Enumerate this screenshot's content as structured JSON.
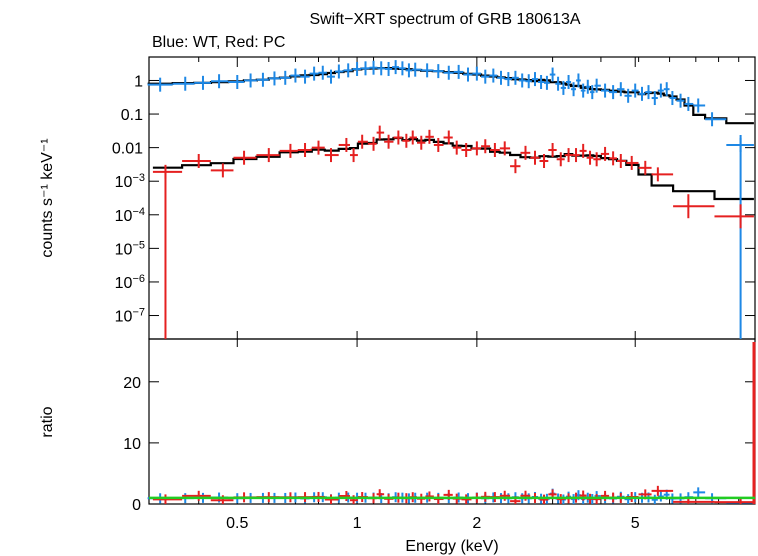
{
  "chart_data": {
    "type": "scatter",
    "title": "Swift−XRT spectrum of GRB 180613A",
    "subtitle": "Blue: WT, Red: PC",
    "xlabel": "Energy (keV)",
    "xscale": "log",
    "xlim": [
      0.3,
      10
    ],
    "x_ticks": [
      0.5,
      1,
      2,
      5
    ],
    "x_tick_labels": [
      "0.5",
      "1",
      "2",
      "5"
    ],
    "colors": {
      "wt": "#1e88e5",
      "pc": "#e52020",
      "model": "#000000",
      "ratio_line": "#22cc22"
    },
    "top_panel": {
      "ylabel": "counts s⁻¹ keV⁻¹",
      "yscale": "log",
      "ylim": [
        2e-08,
        5
      ],
      "y_ticks": [
        {
          "value": 1,
          "label": "1"
        },
        {
          "value": 0.1,
          "label": "0.1"
        },
        {
          "value": 0.01,
          "label": "0.01"
        },
        {
          "value": 0.001,
          "label": "10",
          "exp": "−3"
        },
        {
          "value": 0.0001,
          "label": "10",
          "exp": "−4"
        },
        {
          "value": 1e-05,
          "label": "10",
          "exp": "−5"
        },
        {
          "value": 1e-06,
          "label": "10",
          "exp": "−6"
        },
        {
          "value": 1e-07,
          "label": "10",
          "exp": "−7"
        }
      ],
      "series": [
        {
          "name": "WT",
          "points": [
            [
              0.32,
              0.75
            ],
            [
              0.37,
              0.8
            ],
            [
              0.41,
              0.85
            ],
            [
              0.45,
              0.95
            ],
            [
              0.5,
              0.9
            ],
            [
              0.54,
              1.0
            ],
            [
              0.58,
              1.05
            ],
            [
              0.62,
              1.15
            ],
            [
              0.66,
              1.2
            ],
            [
              0.7,
              1.4
            ],
            [
              0.74,
              1.3
            ],
            [
              0.78,
              1.6
            ],
            [
              0.82,
              1.7
            ],
            [
              0.86,
              1.3
            ],
            [
              0.9,
              1.85
            ],
            [
              0.95,
              2.0
            ],
            [
              1.0,
              2.2
            ],
            [
              1.05,
              2.3
            ],
            [
              1.1,
              2.4
            ],
            [
              1.15,
              2.3
            ],
            [
              1.2,
              2.2
            ],
            [
              1.25,
              2.5
            ],
            [
              1.3,
              2.3
            ],
            [
              1.35,
              2.0
            ],
            [
              1.4,
              2.1
            ],
            [
              1.5,
              2.0
            ],
            [
              1.6,
              1.9
            ],
            [
              1.7,
              1.7
            ],
            [
              1.8,
              1.8
            ],
            [
              1.9,
              1.5
            ],
            [
              2.0,
              1.6
            ],
            [
              2.1,
              1.3
            ],
            [
              2.2,
              1.4
            ],
            [
              2.3,
              1.2
            ],
            [
              2.4,
              1.1
            ],
            [
              2.5,
              1.2
            ],
            [
              2.6,
              1.0
            ],
            [
              2.7,
              0.95
            ],
            [
              2.8,
              1.1
            ],
            [
              2.9,
              0.9
            ],
            [
              3.0,
              0.85
            ],
            [
              3.1,
              1.5
            ],
            [
              3.2,
              0.8
            ],
            [
              3.3,
              0.6
            ],
            [
              3.4,
              0.9
            ],
            [
              3.5,
              0.55
            ],
            [
              3.6,
              1.0
            ],
            [
              3.7,
              0.5
            ],
            [
              3.8,
              0.65
            ],
            [
              3.9,
              0.45
            ],
            [
              4.0,
              0.7
            ],
            [
              4.2,
              0.5
            ],
            [
              4.4,
              0.45
            ],
            [
              4.6,
              0.55
            ],
            [
              4.8,
              0.35
            ],
            [
              5.0,
              0.5
            ],
            [
              5.2,
              0.4
            ],
            [
              5.4,
              0.45
            ],
            [
              5.6,
              0.3
            ],
            [
              5.8,
              0.5
            ],
            [
              6.0,
              0.55
            ],
            [
              6.2,
              0.3
            ],
            [
              6.5,
              0.25
            ],
            [
              6.8,
              0.2
            ],
            [
              7.2,
              0.18
            ],
            [
              7.8,
              0.07
            ],
            [
              9.2,
              0.012
            ]
          ]
        },
        {
          "name": "PC",
          "points": [
            [
              0.33,
              0.0019
            ],
            [
              0.4,
              0.004
            ],
            [
              0.46,
              0.0021
            ],
            [
              0.52,
              0.005
            ],
            [
              0.6,
              0.006
            ],
            [
              0.68,
              0.008
            ],
            [
              0.74,
              0.0085
            ],
            [
              0.8,
              0.01
            ],
            [
              0.86,
              0.006
            ],
            [
              0.94,
              0.012
            ],
            [
              0.98,
              0.006
            ],
            [
              1.03,
              0.015
            ],
            [
              1.1,
              0.013
            ],
            [
              1.14,
              0.028
            ],
            [
              1.2,
              0.015
            ],
            [
              1.27,
              0.02
            ],
            [
              1.33,
              0.016
            ],
            [
              1.38,
              0.02
            ],
            [
              1.45,
              0.014
            ],
            [
              1.52,
              0.021
            ],
            [
              1.6,
              0.012
            ],
            [
              1.7,
              0.02
            ],
            [
              1.78,
              0.01
            ],
            [
              1.88,
              0.0085
            ],
            [
              2.0,
              0.0095
            ],
            [
              2.1,
              0.011
            ],
            [
              2.22,
              0.0085
            ],
            [
              2.35,
              0.0095
            ],
            [
              2.5,
              0.0028
            ],
            [
              2.65,
              0.007
            ],
            [
              2.8,
              0.005
            ],
            [
              2.95,
              0.004
            ],
            [
              3.1,
              0.0085
            ],
            [
              3.25,
              0.0045
            ],
            [
              3.4,
              0.006
            ],
            [
              3.55,
              0.006
            ],
            [
              3.7,
              0.008
            ],
            [
              3.85,
              0.005
            ],
            [
              4.0,
              0.0045
            ],
            [
              4.2,
              0.0065
            ],
            [
              4.4,
              0.0048
            ],
            [
              4.6,
              0.004
            ],
            [
              4.9,
              0.0035
            ],
            [
              5.3,
              0.0025
            ],
            [
              5.7,
              0.0016
            ],
            [
              6.8,
              0.00018
            ],
            [
              9.2,
              9e-05
            ]
          ]
        }
      ]
    },
    "bottom_panel": {
      "ylabel": "ratio",
      "ylim": [
        0,
        27
      ],
      "y_ticks": [
        0,
        10,
        20
      ],
      "reference_line": 1
    }
  }
}
